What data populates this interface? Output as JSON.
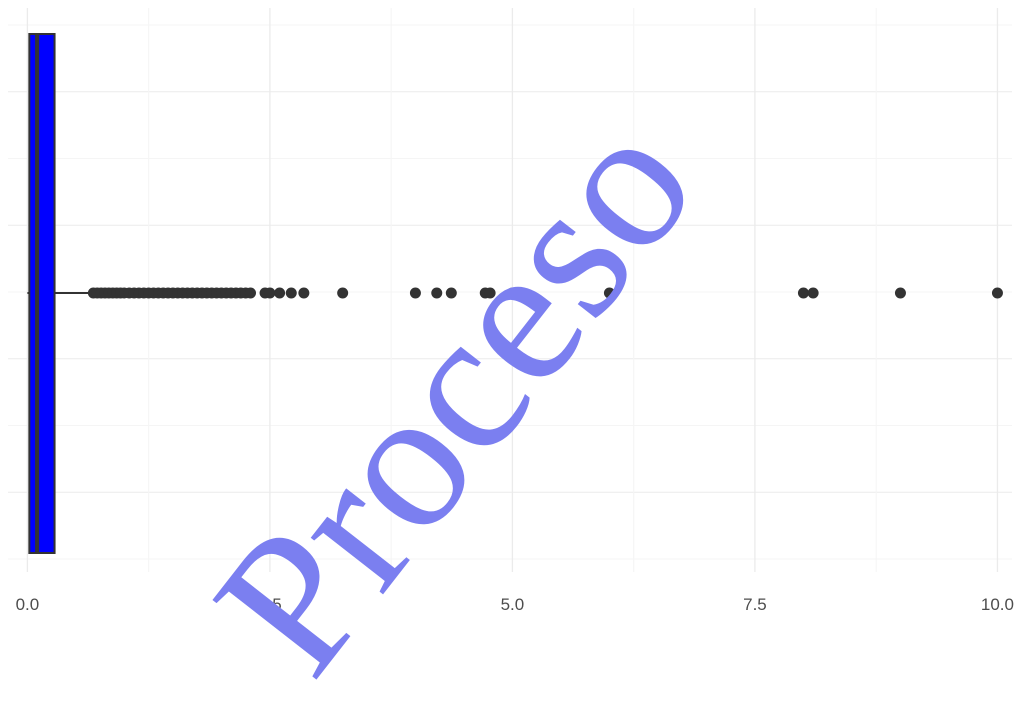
{
  "chart_data": {
    "type": "boxplot",
    "orientation": "horizontal",
    "title": "",
    "xlabel": "",
    "ylabel": "",
    "xlim": [
      -0.2,
      10.15
    ],
    "x_ticks": [
      0.0,
      2.5,
      5.0,
      7.5,
      10.0
    ],
    "x_tick_labels": [
      "0.0",
      "2.5",
      "5.0",
      "7.5",
      "10.0"
    ],
    "grid": true,
    "box": {
      "whisker_low": 0.0,
      "q1": 0.02,
      "median": 0.1,
      "q3": 0.28,
      "whisker_high": 0.65,
      "fill_color": "#0000ff",
      "line_color": "#333333"
    },
    "outliers": [
      0.68,
      0.72,
      0.76,
      0.8,
      0.84,
      0.88,
      0.92,
      0.96,
      1.0,
      1.05,
      1.1,
      1.15,
      1.2,
      1.25,
      1.3,
      1.35,
      1.4,
      1.45,
      1.5,
      1.55,
      1.6,
      1.65,
      1.7,
      1.75,
      1.8,
      1.85,
      1.9,
      1.95,
      2.0,
      2.05,
      2.1,
      2.15,
      2.2,
      2.25,
      2.3,
      2.45,
      2.5,
      2.6,
      2.72,
      2.85,
      3.25,
      4.0,
      4.22,
      4.37,
      4.72,
      4.77,
      5.0,
      6.0,
      8.0,
      8.1,
      9.0,
      10.0
    ],
    "outlier_color": "#333333"
  },
  "watermark": {
    "text": "Proceso",
    "color": "#7b7ff0"
  },
  "colors": {
    "grid_major": "#ebebeb",
    "grid_minor": "#f5f5f5",
    "background": "#ffffff"
  }
}
